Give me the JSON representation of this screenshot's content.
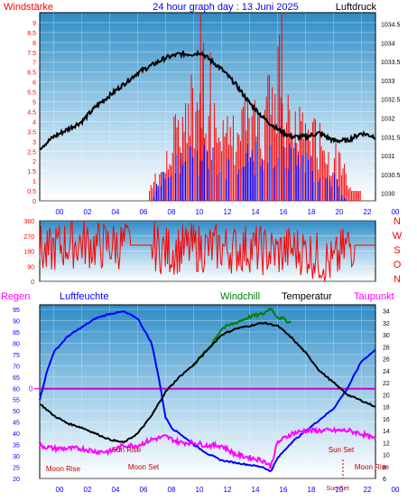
{
  "header": {
    "left_label": "Windstärke",
    "title": "24 hour graph day : 13 Juni 2025",
    "right_label": "Luftdruck"
  },
  "colors": {
    "wind": "#ff0000",
    "gust": "#0000ff",
    "pressure": "#000000",
    "humidity": "#0000ff",
    "windchill": "#008000",
    "temperature": "#000000",
    "dewpoint": "#ff00ff",
    "zero_line": "#cc00cc",
    "sun_moon_label": "#c00000"
  },
  "hour_labels": [
    "00",
    "02",
    "04",
    "06",
    "08",
    "10",
    "12",
    "14",
    "16",
    "18",
    "20",
    "22",
    "00"
  ],
  "panel_top": {
    "left_axis_ticks": [
      "0",
      "0.5",
      "1",
      "1.5",
      "2",
      "2.5",
      "3",
      "3.5",
      "4",
      "4.5",
      "5",
      "5.5",
      "6",
      "6.5",
      "7",
      "7.5",
      "8",
      "8.5",
      "9"
    ],
    "right_axis_ticks": [
      "1030",
      "1030.5",
      "1031",
      "1031.5",
      "1032",
      "1032.5",
      "1033",
      "1033.5",
      "1034",
      "1034.5"
    ]
  },
  "panel_mid": {
    "left_axis_ticks": [
      "0",
      "90",
      "180",
      "270",
      "360"
    ],
    "compass_labels": [
      "N",
      "W",
      "S",
      "O",
      "N"
    ]
  },
  "panel_bottom": {
    "legend": {
      "regen": "Regen",
      "luftfeuchte": "Luftfeuchte",
      "windchill": "Windchill",
      "temperatur": "Temperatur",
      "taupunkt": "Taupunkt"
    },
    "left_axis_ticks": [
      "20",
      "25",
      "30",
      "35",
      "40",
      "45",
      "50",
      "55",
      "60",
      "65",
      "70",
      "75",
      "80",
      "85",
      "90",
      "95"
    ],
    "right_axis_ticks": [
      "6",
      "8",
      "10",
      "12",
      "14",
      "16",
      "18",
      "20",
      "22",
      "24",
      "26",
      "28",
      "30",
      "32",
      "34"
    ],
    "rain_zero_label": "0",
    "annotations": {
      "moon_rise": "Moon Rise",
      "sun_rise": "Sun Rise",
      "moon_set": "Moon Set",
      "sun_set": "Sun Set",
      "sun_set_bottom": "Sun Set",
      "moon_rise_right": "Moon Rise"
    }
  },
  "chart_data": [
    {
      "type": "line",
      "title": "24 hour graph day : 13 Juni 2025",
      "x_unit": "hour",
      "xlim": [
        0,
        24
      ],
      "ylabel": "Windstärke",
      "ylim": [
        0,
        9.5
      ],
      "y2label": "Luftdruck",
      "y2lim": [
        1029.8,
        1034.8
      ],
      "series": [
        {
          "name": "Luftdruck",
          "axis": "right",
          "x": [
            0,
            1,
            2,
            3,
            4,
            5,
            6,
            7,
            8,
            9,
            10,
            11,
            11.5,
            12,
            13,
            14,
            15,
            16,
            17,
            18,
            19,
            20,
            21,
            22,
            23,
            24
          ],
          "values": [
            1031.2,
            1031.5,
            1031.7,
            1031.9,
            1032.3,
            1032.6,
            1032.9,
            1033.2,
            1033.4,
            1033.6,
            1033.7,
            1033.7,
            1033.75,
            1033.6,
            1033.3,
            1032.9,
            1032.4,
            1032.0,
            1031.7,
            1031.5,
            1031.5,
            1031.6,
            1031.4,
            1031.4,
            1031.6,
            1031.5
          ]
        },
        {
          "name": "Windstärke",
          "axis": "left",
          "x": [
            0,
            7.8,
            8,
            8.5,
            9,
            9.5,
            10,
            10.5,
            11,
            11.5,
            12,
            13,
            14,
            15,
            16,
            17,
            18,
            19,
            20,
            21,
            22,
            23,
            24
          ],
          "values": [
            0,
            0,
            1.5,
            1.5,
            3,
            4.2,
            5.5,
            5.5,
            7,
            9.5,
            5.5,
            5.5,
            4.5,
            5.5,
            5.5,
            9.5,
            5.5,
            5.5,
            4,
            3.5,
            1.5,
            0,
            0
          ]
        },
        {
          "name": "Böen",
          "axis": "left",
          "x": [
            0,
            8,
            8.5,
            9,
            10,
            11,
            12,
            13,
            14,
            15,
            16,
            17,
            18,
            19,
            20,
            21,
            22,
            23,
            24
          ],
          "values": [
            0,
            0,
            1.5,
            1.5,
            3,
            3,
            3,
            3,
            2,
            3,
            3,
            3,
            3,
            3,
            1.5,
            1.5,
            0,
            0,
            0
          ]
        }
      ]
    },
    {
      "type": "line",
      "ylabel": "Windrichtung",
      "ylim": [
        0,
        360
      ],
      "x_unit": "hour",
      "xlim": [
        0,
        24
      ],
      "series": [
        {
          "name": "Windrichtung",
          "x": [
            0,
            0.5,
            1,
            2,
            3,
            4,
            5,
            6,
            7,
            8,
            9,
            10,
            11,
            12,
            13,
            14,
            15,
            16,
            17,
            18,
            19,
            20,
            21,
            22,
            23,
            24
          ],
          "values": [
            200,
            150,
            200,
            220,
            230,
            210,
            215,
            215,
            215,
            215,
            180,
            190,
            200,
            195,
            200,
            190,
            200,
            180,
            170,
            190,
            180,
            140,
            100,
            215,
            215,
            215
          ]
        }
      ]
    },
    {
      "type": "line",
      "x_unit": "hour",
      "xlim": [
        0,
        24
      ],
      "ylabel": "Luftfeuchte",
      "ylim": [
        20,
        97
      ],
      "y2label": "Temperatur",
      "y2lim": [
        6,
        35
      ],
      "series": [
        {
          "name": "Luftfeuchte",
          "axis": "left",
          "x": [
            0,
            0.5,
            1,
            2,
            3,
            4,
            5,
            6,
            7,
            8,
            8.5,
            9,
            9.5,
            10,
            11,
            12,
            13,
            14,
            15,
            16,
            16.5,
            17,
            18,
            19,
            20,
            21,
            22,
            23,
            24
          ],
          "values": [
            55,
            67,
            76,
            83,
            87,
            91,
            93,
            94,
            91,
            80,
            65,
            47,
            42,
            40,
            35,
            31,
            28,
            27,
            26,
            25,
            23,
            29,
            36,
            41,
            46,
            51,
            60,
            72,
            77
          ]
        },
        {
          "name": "Temperatur",
          "axis": "right",
          "x": [
            0,
            1,
            2,
            3,
            4,
            5,
            6,
            7,
            8,
            9,
            10,
            11,
            12,
            13,
            14,
            15,
            16,
            17,
            18,
            19,
            20,
            21,
            22,
            23,
            24
          ],
          "values": [
            18.5,
            16.5,
            15.2,
            14.5,
            13.5,
            12.5,
            12.0,
            13.5,
            16.5,
            20.5,
            23,
            25,
            27.5,
            30,
            31,
            31.5,
            32,
            31.5,
            29.5,
            27,
            24,
            22,
            20,
            19,
            18
          ]
        },
        {
          "name": "Windchill",
          "axis": "right",
          "x": [
            11,
            12,
            13,
            14,
            15,
            16,
            16.5,
            17,
            18
          ],
          "values": [
            25,
            27.5,
            31,
            32,
            33,
            33.5,
            34.5,
            33,
            32
          ]
        },
        {
          "name": "Taupunkt",
          "axis": "right",
          "x": [
            0,
            1,
            2,
            3,
            4,
            5,
            6,
            7,
            8,
            9,
            10,
            11,
            12,
            13,
            14,
            15,
            16,
            16.5,
            17,
            18,
            19,
            20,
            21,
            22,
            23,
            24
          ],
          "values": [
            11.5,
            11,
            11,
            11,
            10.5,
            10.5,
            11.5,
            11.5,
            12.5,
            13,
            12,
            12,
            11.5,
            11.5,
            10,
            9.5,
            9,
            8,
            12,
            13.5,
            14,
            14,
            14,
            14,
            13.5,
            12.5
          ]
        }
      ]
    }
  ]
}
